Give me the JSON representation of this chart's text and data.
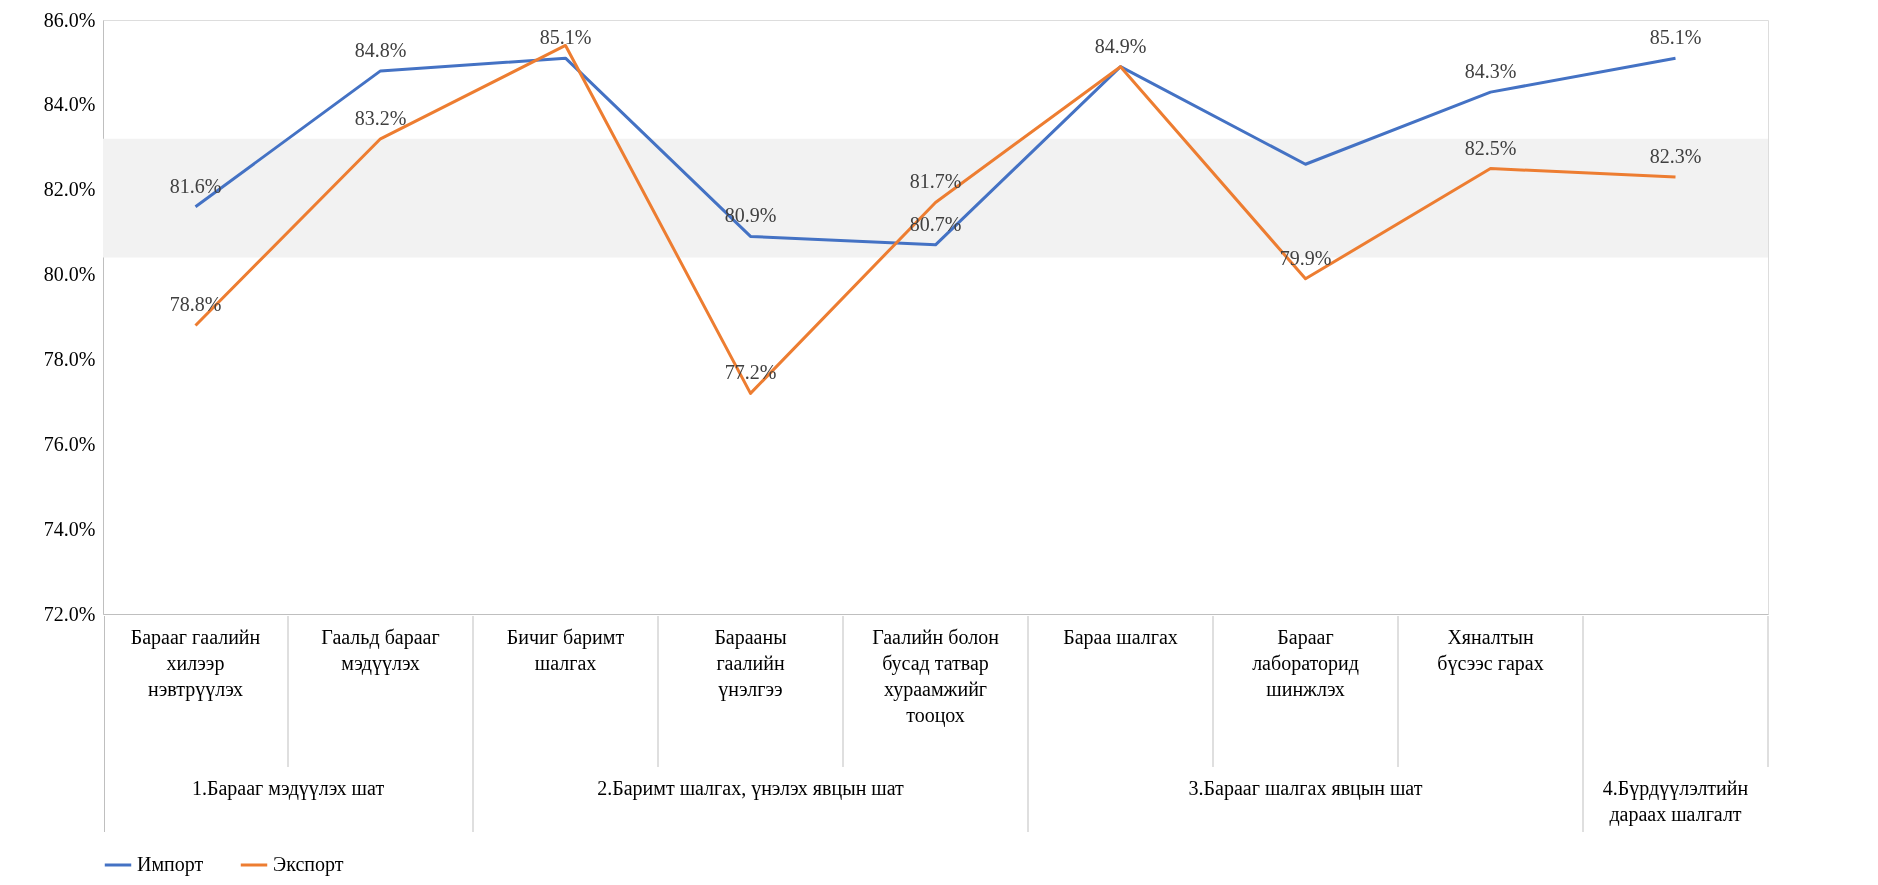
{
  "chart_data": {
    "type": "line",
    "categories": [
      "Барааг гаалийн хилээр нэвтрүүлэх",
      "Гаальд барааг мэдүүлэх",
      "Бичиг баримт шалгах",
      "Барааны гаалийн үнэлгээ",
      "Гаалийн болон бусад татвар хураамжийг тооцох",
      "Бараа шалгах",
      "Барааг лабораторид шинжлэх",
      "Хяналтын бүсээс гарах",
      null
    ],
    "series": [
      {
        "name": "Импорт",
        "color": "#4472c4",
        "values": [
          81.6,
          84.8,
          85.1,
          80.9,
          80.7,
          84.9,
          82.6,
          84.3,
          85.1
        ],
        "value_labels": [
          "81.6%",
          "84.8%",
          "85.1%",
          "80.9%",
          "80.7%",
          "84.9%",
          null,
          "84.3%",
          "85.1%"
        ]
      },
      {
        "name": "Экспорт",
        "color": "#ed7d31",
        "values": [
          78.8,
          83.2,
          85.4,
          77.2,
          81.7,
          84.9,
          79.9,
          82.5,
          82.3
        ],
        "value_labels": [
          "78.8%",
          "83.2%",
          null,
          "77.2%",
          "81.7%",
          null,
          "79.9%",
          "82.5%",
          "82.3%"
        ]
      }
    ],
    "ylim": [
      72,
      86
    ],
    "yticks": [
      {
        "value": 72,
        "label": "72.0%"
      },
      {
        "value": 74,
        "label": "74.0%"
      },
      {
        "value": 76,
        "label": "76.0%"
      },
      {
        "value": 78,
        "label": "78.0%"
      },
      {
        "value": 80,
        "label": "80.0%"
      },
      {
        "value": 82,
        "label": "82.0%"
      },
      {
        "value": 84,
        "label": "84.0%"
      },
      {
        "value": 86,
        "label": "86.0%"
      }
    ],
    "bands": [
      {
        "axis": "y",
        "from": 80.4,
        "to": 83.2,
        "color": "#f2f2f2"
      }
    ],
    "annotations": [
      "1.Барааг мэдүүлэх шат",
      "2.Баримт шалгах, үнэлэх явцын шат",
      "3.Барааг шалгах явцын шат",
      "4.Бүрдүүлэлтийн дараах шалгалт"
    ],
    "legend": "bottom",
    "grid": false,
    "marker": "none",
    "line_style": "solid"
  }
}
